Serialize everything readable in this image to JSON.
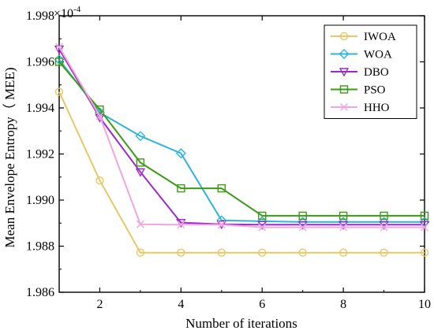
{
  "chart_data": {
    "type": "line",
    "xlabel": "Number of iterations",
    "ylabel": "Mean Envelope Entropy（ MEE)",
    "y_scale_label": "×10",
    "y_scale_exponent": "-4",
    "xlim": [
      1,
      10
    ],
    "ylim": [
      1.986,
      1.998
    ],
    "x_ticks": [
      2,
      4,
      6,
      8,
      10
    ],
    "y_ticks": [
      1.986,
      1.988,
      1.99,
      1.992,
      1.994,
      1.996,
      1.998
    ],
    "y_tick_labels": [
      "1.986",
      "1.988",
      "1.990",
      "1.992",
      "1.994",
      "1.996",
      "1.998"
    ],
    "grid": false,
    "legend_position": "top-right",
    "x": [
      1,
      2,
      3,
      4,
      5,
      6,
      7,
      8,
      9,
      10
    ],
    "series": [
      {
        "name": "IWOA",
        "color": "#E8C766",
        "marker": "circle",
        "values": [
          1.9947,
          1.99085,
          1.98772,
          1.98772,
          1.98772,
          1.98772,
          1.98772,
          1.98772,
          1.98772,
          1.98772
        ]
      },
      {
        "name": "WOA",
        "color": "#2DB4DB",
        "marker": "diamond",
        "values": [
          1.9961,
          1.9938,
          1.99278,
          1.99203,
          1.98912,
          1.98908,
          1.98905,
          1.98905,
          1.98905,
          1.98905
        ]
      },
      {
        "name": "DBO",
        "color": "#9B2BC7",
        "marker": "triangle-down",
        "values": [
          1.99655,
          1.99358,
          1.99122,
          1.98902,
          1.98895,
          1.98893,
          1.98893,
          1.98893,
          1.98893,
          1.98893
        ]
      },
      {
        "name": "PSO",
        "color": "#3D9A17",
        "marker": "square",
        "values": [
          1.996,
          1.99393,
          1.99163,
          1.99051,
          1.99051,
          1.98932,
          1.98932,
          1.98932,
          1.98932,
          1.98932
        ]
      },
      {
        "name": "HHO",
        "color": "#F2A6E0",
        "marker": "x",
        "values": [
          1.99665,
          1.99365,
          1.98895,
          1.98893,
          1.98893,
          1.98882,
          1.98882,
          1.98882,
          1.98882,
          1.98882
        ]
      }
    ]
  }
}
